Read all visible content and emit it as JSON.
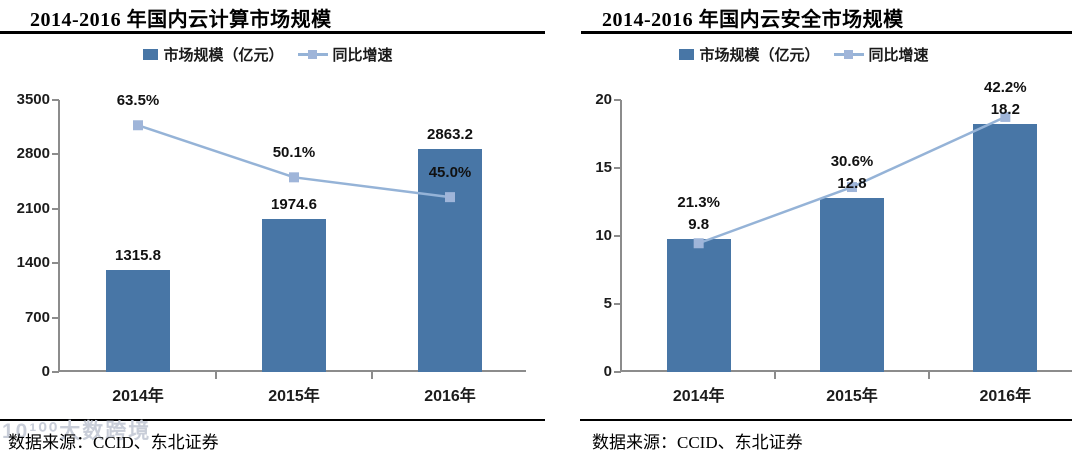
{
  "colors": {
    "bar": "#4876A6",
    "line": "#95B3D7",
    "marker": "#9FB5D9",
    "axis": "#8C8C8C",
    "watermark": "#C8CDD8"
  },
  "watermark": {
    "text": "10¹⁰⁰大数跨境"
  },
  "chart_data": [
    {
      "type": "bar",
      "title": "2014-2016 年国内云计算市场规模",
      "categories": [
        "2014年",
        "2015年",
        "2016年"
      ],
      "series": [
        {
          "name": "市场规模（亿元）",
          "chart": "bar",
          "axis": "left",
          "values": [
            1315.8,
            1974.6,
            2863.2
          ],
          "labels": [
            "1315.8",
            "1974.6",
            "2863.2"
          ]
        },
        {
          "name": "同比增速",
          "chart": "line",
          "axis": "right-hidden",
          "values": [
            63.5,
            50.1,
            45.0
          ],
          "labels": [
            "63.5%",
            "50.1%",
            "45.0%"
          ]
        }
      ],
      "ylim": [
        0,
        3500
      ],
      "yticks": [
        "0",
        "700",
        "1400",
        "2100",
        "2800",
        "3500"
      ],
      "right_ylim": [
        0,
        70
      ],
      "grid": false,
      "legend_position": "top-center",
      "source": "数据来源：CCID、东北证券"
    },
    {
      "type": "bar",
      "title": "2014-2016 年国内云安全市场规模",
      "categories": [
        "2014年",
        "2015年",
        "2016年"
      ],
      "series": [
        {
          "name": "市场规模（亿元）",
          "chart": "bar",
          "axis": "left",
          "values": [
            9.8,
            12.8,
            18.2
          ],
          "labels": [
            "9.8",
            "12.8",
            "18.2"
          ]
        },
        {
          "name": "同比增速",
          "chart": "line",
          "axis": "right-hidden",
          "values": [
            21.3,
            30.6,
            42.2
          ],
          "labels": [
            "21.3%",
            "30.6%",
            "42.2%"
          ]
        }
      ],
      "ylim": [
        0,
        20
      ],
      "yticks": [
        "0",
        "5",
        "10",
        "15",
        "20"
      ],
      "right_ylim": [
        0,
        45
      ],
      "grid": false,
      "legend_position": "top-center",
      "source": "数据来源：CCID、东北证券"
    }
  ]
}
